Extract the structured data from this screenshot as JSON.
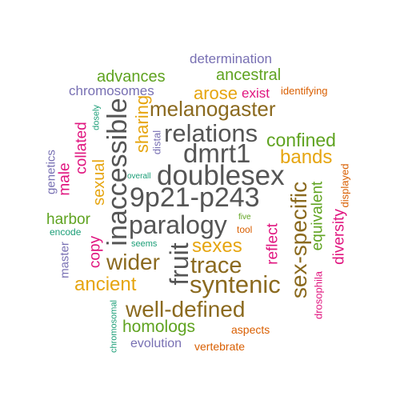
{
  "palette": {
    "dark_gray": "#555555",
    "brown": "#8B6A1F",
    "goldenrod": "#E6A510",
    "green": "#5FA320",
    "purple": "#7870B3",
    "magenta": "#E0157F",
    "orange_red": "#D95F02",
    "teal": "#1B9E77"
  },
  "words": {
    "doublesex": "doublesex",
    "p9p21": "9p21-p243",
    "paralogy": "paralogy",
    "inaccessible": "inaccessible",
    "dmrt1": "dmrt1",
    "relations": "relations",
    "fruit": "fruit",
    "syntenic": "syntenic",
    "sex_specific": "sex-specific",
    "melanogaster": "melanogaster",
    "trace": "trace",
    "well_defined": "well-defined",
    "wider": "wider",
    "sexes": "sexes",
    "ancient": "ancient",
    "sexual": "sexual",
    "bands": "bands",
    "confined": "confined",
    "arose": "arose",
    "sharing": "sharing",
    "homologs": "homologs",
    "ancestral": "ancestral",
    "chromosomes": "chromosomes",
    "advances": "advances",
    "equivalent": "equivalent",
    "collated": "collated",
    "harbor": "harbor",
    "diversity": "diversity",
    "reflect": "reflect",
    "copy": "copy",
    "male": "male",
    "determination": "determination",
    "exist": "exist",
    "genetics": "genetics",
    "master": "master",
    "evolution": "evolution",
    "identifying": "identifying",
    "distal": "distal",
    "aspects": "aspects",
    "vertebrate": "vertebrate",
    "displayed": "displayed",
    "drosophila": "drosophila",
    "tool": "tool",
    "dosely": "dosely",
    "encode": "encode",
    "chromosomal": "chromosomal",
    "five": "five",
    "seems": "seems",
    "overall": "overall"
  }
}
